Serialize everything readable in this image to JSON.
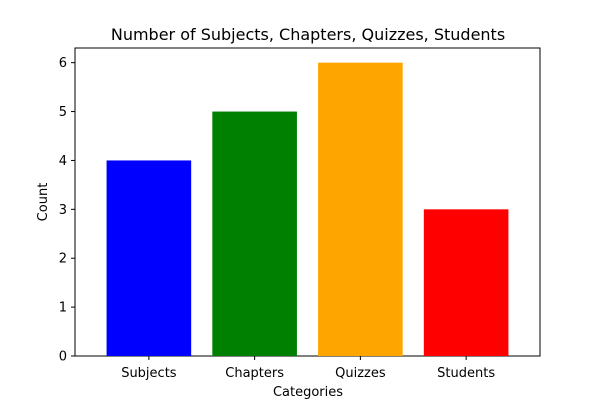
{
  "chart_data": {
    "type": "bar",
    "title": "Number of Subjects, Chapters, Quizzes, Students",
    "xlabel": "Categories",
    "ylabel": "Count",
    "categories": [
      "Subjects",
      "Chapters",
      "Quizzes",
      "Students"
    ],
    "values": [
      4,
      5,
      6,
      3
    ],
    "colors": [
      "#0000ff",
      "#008000",
      "#ffa500",
      "#ff0000"
    ],
    "ylim": [
      0,
      6.3
    ],
    "yticks": [
      0,
      1,
      2,
      3,
      4,
      5,
      6
    ],
    "grid": false,
    "legend": "none"
  }
}
